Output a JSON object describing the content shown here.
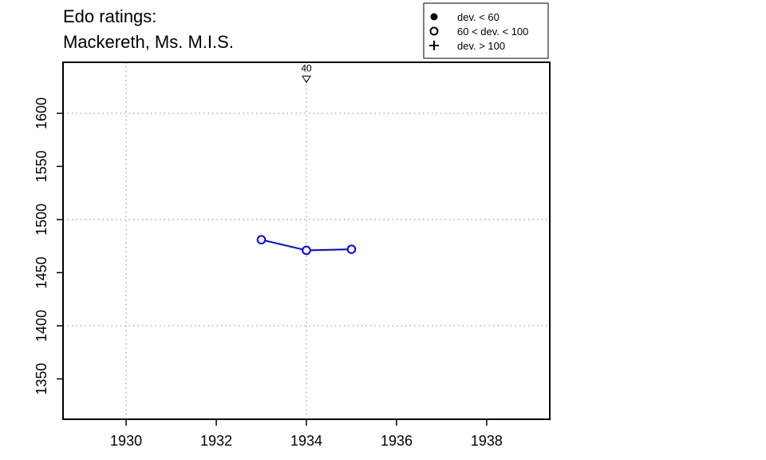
{
  "title_lines": [
    "Edo ratings:",
    "Mackereth, Ms. M.I.S."
  ],
  "colors": {
    "series": "#0000ee",
    "grid": "#999999",
    "frame": "#000000"
  },
  "legend": {
    "position": "top-right",
    "entries": [
      {
        "symbol": "filled-circle",
        "label": "dev. < 60"
      },
      {
        "symbol": "open-circle",
        "label": "60 < dev. < 100"
      },
      {
        "symbol": "plus",
        "label": "dev. > 100"
      }
    ]
  },
  "chart_data": {
    "type": "line",
    "title": "Edo ratings: Mackereth, Ms. M.I.S.",
    "xlabel": "",
    "ylabel": "",
    "xlim": [
      1928.6,
      1939.4
    ],
    "ylim": [
      1312,
      1648
    ],
    "xticks": [
      1930,
      1932,
      1934,
      1936,
      1938
    ],
    "yticks": [
      1350,
      1400,
      1450,
      1500,
      1550,
      1600
    ],
    "grid_x": [
      1930,
      1934
    ],
    "grid_y": [
      1400,
      1500,
      1600
    ],
    "grid": "dotted",
    "series": [
      {
        "marker": "open-circle",
        "x": [
          1933,
          1934,
          1935
        ],
        "y": [
          1481,
          1471,
          1472
        ]
      }
    ],
    "annotations": [
      {
        "x": 1934,
        "y": 1632,
        "marker": "open-triangle-down",
        "label": "40"
      }
    ]
  }
}
